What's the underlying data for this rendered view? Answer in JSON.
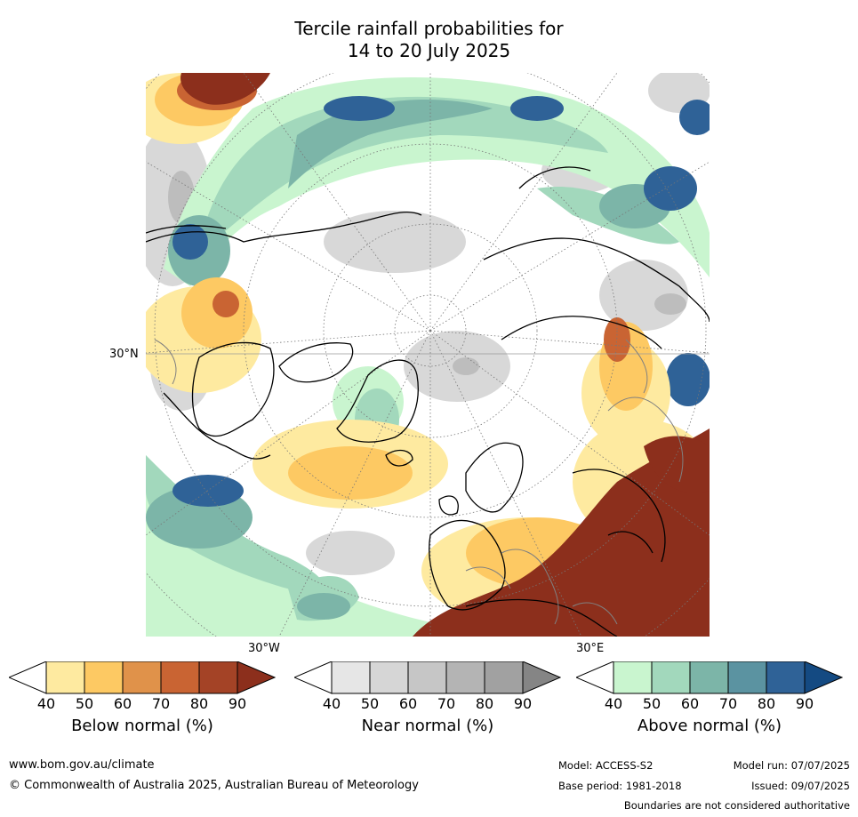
{
  "title_line1": "Tercile rainfall probabilities for",
  "title_line2": "14 to 20 July 2025",
  "map": {
    "lat_label": "30°N",
    "lon_label_left": "30°W",
    "lon_label_right": "30°E"
  },
  "colorbars": [
    {
      "title": "Below normal (%)",
      "ticks": [
        "40",
        "50",
        "60",
        "70",
        "80",
        "90"
      ],
      "colors": [
        "#ffffff",
        "#feeaa0",
        "#fdc963",
        "#e0924a",
        "#c96433",
        "#a44326",
        "#8c2f1c"
      ]
    },
    {
      "title": "Near normal (%)",
      "ticks": [
        "40",
        "50",
        "60",
        "70",
        "80",
        "90"
      ],
      "colors": [
        "#ffffff",
        "#e6e6e6",
        "#d6d6d6",
        "#c6c6c6",
        "#b4b4b4",
        "#a1a1a1",
        "#858585"
      ]
    },
    {
      "title": "Above normal (%)",
      "ticks": [
        "40",
        "50",
        "60",
        "70",
        "80",
        "90"
      ],
      "colors": [
        "#ffffff",
        "#c9f5cf",
        "#a2d8bc",
        "#7cb5a8",
        "#5b93a1",
        "#2f6297",
        "#144a82"
      ]
    }
  ],
  "footer": {
    "website": "www.bom.gov.au/climate",
    "copyright": "© Commonwealth of Australia 2025, Australian Bureau of Meteorology",
    "model": "Model: ACCESS-S2",
    "base_period": "Base period: 1981-2018",
    "model_run": "Model run: 07/07/2025",
    "issued": "Issued: 09/07/2025",
    "disclaimer": "Boundaries are not considered authoritative"
  }
}
